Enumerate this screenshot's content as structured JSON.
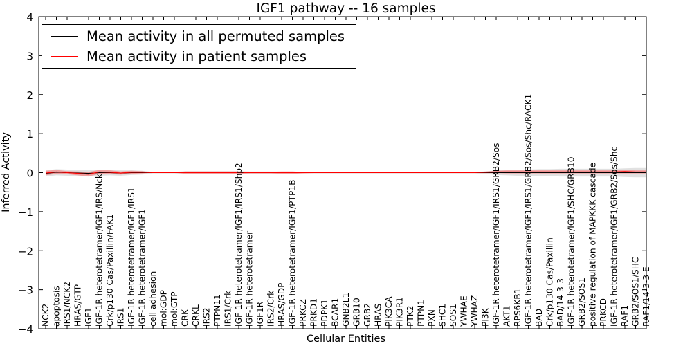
{
  "chart_data": {
    "type": "line",
    "title": "IGF1 pathway -- 16 samples",
    "xlabel": "Cellular Entities",
    "ylabel": "Inferred Activity",
    "ylim": [
      -4,
      4
    ],
    "yticks": [
      -4,
      -3,
      -2,
      -1,
      0,
      1,
      2,
      3,
      4
    ],
    "ytick_labels": [
      "−4",
      "−3",
      "−2",
      "−1",
      "0",
      "1",
      "2",
      "3",
      "4"
    ],
    "grid": false,
    "legend_position": "upper-left",
    "categories": [
      "NCK2",
      "apoptosis",
      "IRS1/NCK2",
      "HRAS/GTP",
      "IGF1",
      "IGF-1R heterotetramer/IGF1/IRS/Nck",
      "Crk/p130 Cas/Paxillin/FAK1",
      "IRS1",
      "IGF-1R heterotetramer/IGF1/IRS1",
      "IGF-1R heterotetramer/IGF1",
      "cell adhesion",
      "mol:GDP",
      "mol:GTP",
      "CRK",
      "CRKL",
      "IRS2",
      "PTPN11",
      "IRS1/Crk",
      "IGF-1R heterotetramer/IGF1/IRS1/Shp2",
      "IGF-1R heterotetramer",
      "IGF1R",
      "IRS2/Crk",
      "HRAS/GDP",
      "IGF-1R heterotetramer/IGF1/PTP1B",
      "PRKCZ",
      "PRKD1",
      "PDPK1",
      "BCAR1",
      "GNB2L1",
      "GRB10",
      "GRB2",
      "HRAS",
      "PIK3CA",
      "PIK3R1",
      "PTK2",
      "PTPN1",
      "PXN",
      "SHC1",
      "SOS1",
      "YWHAE",
      "YWHAZ",
      "PI3K",
      "IGF-1R heterotetramer/IGF1/IRS1/GRB2/Sos",
      "AKT1",
      "RPS6KB1",
      "IGF-1R heterotetramer/IGF1/IRS1/GRB2/Sos/Shc/RACK1",
      "BAD",
      "Crk/p130 Cas/Paxillin",
      "BAD/14-3-3",
      "IGF-1R heterotetramer/IGF1/SHC/GRB10",
      "GRB2/SOS1",
      "positive regulation of MAPKKK cascade",
      "PRKCD",
      "IGF-1R heterotetramer/IGF1/GRB2/Sos/Shc",
      "RAF1",
      "GRB2/SOS1/SHC",
      "RAF1/14-3-3 E"
    ],
    "series": [
      {
        "name": "Mean activity in all permuted samples",
        "color": "#000000",
        "values": [
          -0.02,
          0.01,
          0.0,
          -0.01,
          -0.02,
          0.0,
          0.0,
          -0.01,
          0.0,
          0.0,
          0.0,
          0.0,
          0.0,
          0.0,
          0.0,
          0.0,
          0.0,
          0.0,
          0.0,
          0.0,
          0.0,
          0.0,
          0.0,
          0.0,
          0.0,
          0.0,
          0.0,
          0.0,
          0.0,
          0.0,
          0.0,
          0.0,
          0.0,
          0.0,
          0.0,
          0.0,
          0.0,
          0.0,
          0.0,
          0.0,
          0.0,
          0.0,
          0.0,
          0.0,
          0.0,
          0.0,
          0.0,
          0.0,
          0.0,
          0.0,
          0.0,
          0.0,
          0.0,
          0.0,
          0.0,
          0.0,
          0.0
        ],
        "band": [
          0.08,
          0.08,
          0.08,
          0.08,
          0.08,
          0.08,
          0.07,
          0.07,
          0.06,
          0.05,
          0.02,
          0.02,
          0.02,
          0.04,
          0.04,
          0.04,
          0.04,
          0.04,
          0.04,
          0.03,
          0.03,
          0.03,
          0.03,
          0.03,
          0.02,
          0.02,
          0.02,
          0.02,
          0.02,
          0.02,
          0.02,
          0.02,
          0.02,
          0.02,
          0.02,
          0.02,
          0.02,
          0.02,
          0.02,
          0.02,
          0.02,
          0.03,
          0.06,
          0.07,
          0.08,
          0.08,
          0.09,
          0.09,
          0.1,
          0.1,
          0.1,
          0.1,
          0.1,
          0.1,
          0.11,
          0.12,
          0.12
        ]
      },
      {
        "name": "Mean activity in patient samples",
        "color": "#ff0000",
        "values": [
          -0.01,
          0.02,
          0.0,
          -0.02,
          -0.04,
          0.02,
          0.01,
          -0.01,
          0.01,
          0.01,
          0.0,
          0.0,
          0.0,
          0.0,
          0.0,
          0.0,
          0.0,
          0.0,
          0.0,
          0.0,
          0.0,
          0.0,
          0.0,
          0.0,
          0.0,
          0.0,
          0.0,
          0.0,
          0.0,
          0.0,
          0.0,
          0.0,
          0.0,
          0.0,
          0.0,
          0.0,
          0.0,
          0.0,
          0.0,
          0.0,
          0.0,
          0.01,
          0.02,
          0.02,
          0.02,
          0.02,
          0.02,
          0.02,
          0.02,
          0.02,
          0.02,
          0.02,
          0.02,
          0.02,
          0.03,
          0.02,
          0.02
        ],
        "band": [
          0.06,
          0.05,
          0.04,
          0.05,
          0.06,
          0.05,
          0.05,
          0.04,
          0.04,
          0.03,
          0.0,
          0.0,
          0.0,
          0.03,
          0.03,
          0.03,
          0.03,
          0.03,
          0.03,
          0.02,
          0.02,
          0.02,
          0.03,
          0.03,
          0.02,
          0.01,
          0.01,
          0.01,
          0.01,
          0.01,
          0.01,
          0.01,
          0.01,
          0.01,
          0.01,
          0.01,
          0.01,
          0.01,
          0.01,
          0.01,
          0.01,
          0.02,
          0.03,
          0.04,
          0.04,
          0.04,
          0.04,
          0.04,
          0.04,
          0.04,
          0.04,
          0.04,
          0.04,
          0.04,
          0.05,
          0.04,
          0.04
        ]
      }
    ]
  }
}
